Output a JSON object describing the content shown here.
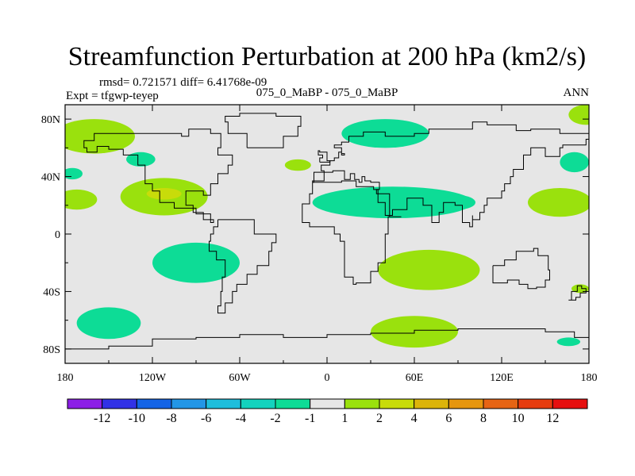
{
  "chart_data": {
    "type": "heatmap",
    "title": "Streamfunction Perturbation at 200 hPa (km2/s)",
    "stats_line": "rmsd= 0.721571 diff= 6.41768e-09",
    "left_label": "Expt = tfgwp-teyep",
    "center_label": "075_0_MaBP - 075_0_MaBP",
    "right_label": "ANN",
    "x_ticks": [
      "180",
      "120W",
      "60W",
      "0",
      "60E",
      "120E",
      "180"
    ],
    "x_values": [
      -180,
      -120,
      -60,
      0,
      60,
      120,
      180
    ],
    "y_ticks": [
      "80N",
      "40N",
      "0",
      "40S",
      "80S"
    ],
    "y_values": [
      80,
      40,
      0,
      -40,
      -80
    ],
    "xlim": [
      -180,
      180
    ],
    "ylim": [
      -90,
      90
    ],
    "background_color": "#e6e6e6",
    "colorbar": {
      "colors": [
        "#8c1fe6",
        "#3232e6",
        "#1464e6",
        "#2396e6",
        "#1ebedc",
        "#14d2be",
        "#0ddc96",
        "#e6e6e6",
        "#9ae10d",
        "#c8dc0a",
        "#dcb40a",
        "#e6960f",
        "#e66414",
        "#e63c0f",
        "#e60f0f"
      ],
      "labels": [
        "-12",
        "-10",
        "-8",
        "-6",
        "-4",
        "-2",
        "-1",
        "1",
        "2",
        "4",
        "6",
        "8",
        "10",
        "12"
      ]
    },
    "anomaly_regions": [
      {
        "lon": -160,
        "lat": 68,
        "rlon": 28,
        "rlat": 12,
        "value": 2
      },
      {
        "lon": -175,
        "lat": 42,
        "rlon": 7,
        "rlat": 4,
        "value": -2
      },
      {
        "lon": -128,
        "lat": 52,
        "rlon": 10,
        "rlat": 5,
        "value": -2
      },
      {
        "lon": -112,
        "lat": 26,
        "rlon": 30,
        "rlat": 13,
        "value": 2
      },
      {
        "lon": -112,
        "lat": 28,
        "rlon": 12,
        "rlat": 4,
        "value": 4
      },
      {
        "lon": -172,
        "lat": 24,
        "rlon": 14,
        "rlat": 7,
        "value": 2
      },
      {
        "lon": -90,
        "lat": -20,
        "rlon": 30,
        "rlat": 14,
        "value": -2
      },
      {
        "lon": -150,
        "lat": -62,
        "rlon": 22,
        "rlat": 11,
        "value": -2
      },
      {
        "lon": 40,
        "lat": 70,
        "rlon": 30,
        "rlat": 10,
        "value": -2
      },
      {
        "lon": 45,
        "lat": 22,
        "rlon": 55,
        "rlat": 11,
        "value": -2
      },
      {
        "lon": -20,
        "lat": 48,
        "rlon": 9,
        "rlat": 4,
        "value": 2
      },
      {
        "lon": 90,
        "lat": 22,
        "rlon": 12,
        "rlat": 5,
        "value": -2
      },
      {
        "lon": 70,
        "lat": -25,
        "rlon": 35,
        "rlat": 14,
        "value": 2
      },
      {
        "lon": 60,
        "lat": -68,
        "rlon": 30,
        "rlat": 11,
        "value": 2
      },
      {
        "lon": 160,
        "lat": 22,
        "rlon": 22,
        "rlat": 10,
        "value": 2
      },
      {
        "lon": 170,
        "lat": 50,
        "rlon": 10,
        "rlat": 7,
        "value": -2
      },
      {
        "lon": 178,
        "lat": 83,
        "rlon": 12,
        "rlat": 7,
        "value": 2
      },
      {
        "lon": 174,
        "lat": -38,
        "rlon": 6,
        "rlat": 3,
        "value": 2
      },
      {
        "lon": 166,
        "lat": -75,
        "rlon": 8,
        "rlat": 3,
        "value": -2
      }
    ],
    "coastlines": [
      [
        [
          -130,
          70
        ],
        [
          -115,
          70
        ],
        [
          -100,
          68
        ],
        [
          -95,
          73
        ],
        [
          -80,
          70
        ],
        [
          -73,
          60
        ],
        [
          -75,
          55
        ],
        [
          -65,
          48
        ],
        [
          -68,
          42
        ],
        [
          -75,
          35
        ],
        [
          -80,
          27
        ],
        [
          -85,
          30
        ],
        [
          -90,
          30
        ],
        [
          -97,
          26
        ],
        [
          -97,
          20
        ],
        [
          -92,
          15
        ],
        [
          -85,
          10
        ],
        [
          -78,
          8
        ],
        [
          -80,
          14
        ],
        [
          -90,
          18
        ],
        [
          -105,
          22
        ],
        [
          -115,
          30
        ],
        [
          -120,
          35
        ],
        [
          -125,
          42
        ],
        [
          -125,
          48
        ],
        [
          -130,
          55
        ],
        [
          -140,
          59
        ],
        [
          -150,
          61
        ],
        [
          -158,
          57
        ],
        [
          -165,
          60
        ],
        [
          -167,
          65
        ],
        [
          -160,
          70
        ],
        [
          -140,
          70
        ],
        [
          -130,
          70
        ]
      ],
      [
        [
          -75,
          10
        ],
        [
          -62,
          10
        ],
        [
          -50,
          0
        ],
        [
          -35,
          -6
        ],
        [
          -38,
          -12
        ],
        [
          -40,
          -22
        ],
        [
          -48,
          -28
        ],
        [
          -55,
          -35
        ],
        [
          -62,
          -40
        ],
        [
          -65,
          -48
        ],
        [
          -70,
          -55
        ],
        [
          -75,
          -50
        ],
        [
          -73,
          -40
        ],
        [
          -72,
          -30
        ],
        [
          -70,
          -18
        ],
        [
          -76,
          -12
        ],
        [
          -81,
          -5
        ],
        [
          -80,
          0
        ],
        [
          -78,
          5
        ],
        [
          -75,
          10
        ]
      ],
      [
        [
          -55,
          60
        ],
        [
          -45,
          60
        ],
        [
          -30,
          68
        ],
        [
          -20,
          75
        ],
        [
          -18,
          82
        ],
        [
          -35,
          84
        ],
        [
          -60,
          82
        ],
        [
          -70,
          78
        ],
        [
          -68,
          70
        ],
        [
          -55,
          60
        ]
      ],
      [
        [
          -10,
          36
        ],
        [
          0,
          36
        ],
        [
          10,
          37
        ],
        [
          20,
          33
        ],
        [
          32,
          31
        ],
        [
          35,
          28
        ],
        [
          43,
          12
        ],
        [
          51,
          12
        ],
        [
          42,
          0
        ],
        [
          40,
          -10
        ],
        [
          40,
          -20
        ],
        [
          35,
          -26
        ],
        [
          30,
          -34
        ],
        [
          20,
          -35
        ],
        [
          18,
          -30
        ],
        [
          12,
          -18
        ],
        [
          12,
          -5
        ],
        [
          9,
          0
        ],
        [
          5,
          5
        ],
        [
          -5,
          5
        ],
        [
          -12,
          8
        ],
        [
          -17,
          15
        ],
        [
          -17,
          21
        ],
        [
          -12,
          28
        ],
        [
          -10,
          36
        ]
      ],
      [
        [
          -10,
          36
        ],
        [
          -9,
          43
        ],
        [
          -2,
          44
        ],
        [
          -4,
          48
        ],
        [
          2,
          51
        ],
        [
          5,
          53
        ],
        [
          8,
          57
        ],
        [
          10,
          55
        ],
        [
          12,
          56
        ],
        [
          10,
          60
        ],
        [
          5,
          62
        ],
        [
          10,
          64
        ],
        [
          15,
          68
        ],
        [
          25,
          71
        ],
        [
          40,
          68
        ],
        [
          45,
          68
        ],
        [
          60,
          70
        ],
        [
          70,
          73
        ],
        [
          80,
          73
        ],
        [
          100,
          78
        ],
        [
          110,
          76
        ],
        [
          130,
          72
        ],
        [
          140,
          73
        ],
        [
          160,
          70
        ],
        [
          170,
          70
        ],
        [
          180,
          66
        ],
        [
          178,
          62
        ],
        [
          162,
          60
        ],
        [
          160,
          54
        ],
        [
          150,
          60
        ],
        [
          140,
          55
        ],
        [
          135,
          45
        ],
        [
          128,
          40
        ],
        [
          126,
          35
        ],
        [
          122,
          30
        ],
        [
          120,
          25
        ],
        [
          110,
          20
        ],
        [
          108,
          15
        ],
        [
          105,
          10
        ],
        [
          100,
          13
        ],
        [
          100,
          5
        ],
        [
          98,
          8
        ],
        [
          93,
          20
        ],
        [
          88,
          22
        ],
        [
          80,
          15
        ],
        [
          77,
          8
        ],
        [
          72,
          20
        ],
        [
          66,
          25
        ],
        [
          57,
          25
        ],
        [
          55,
          17
        ],
        [
          45,
          13
        ],
        [
          40,
          22
        ],
        [
          35,
          28
        ],
        [
          34,
          31
        ],
        [
          36,
          36
        ],
        [
          30,
          37
        ],
        [
          26,
          40
        ],
        [
          24,
          36
        ],
        [
          22,
          38
        ],
        [
          19,
          42
        ],
        [
          16,
          38
        ],
        [
          12,
          44
        ],
        [
          8,
          44
        ],
        [
          4,
          43
        ],
        [
          -2,
          37
        ],
        [
          -10,
          36
        ]
      ],
      [
        [
          114,
          -22
        ],
        [
          122,
          -18
        ],
        [
          130,
          -12
        ],
        [
          137,
          -12
        ],
        [
          142,
          -10
        ],
        [
          145,
          -15
        ],
        [
          152,
          -25
        ],
        [
          153,
          -32
        ],
        [
          150,
          -37
        ],
        [
          144,
          -38
        ],
        [
          138,
          -35
        ],
        [
          132,
          -32
        ],
        [
          124,
          -34
        ],
        [
          116,
          -34
        ],
        [
          114,
          -26
        ],
        [
          114,
          -22
        ]
      ],
      [
        [
          -5,
          50
        ],
        [
          2,
          51
        ],
        [
          0,
          57
        ],
        [
          -5,
          58
        ],
        [
          -6,
          55
        ],
        [
          -3,
          53
        ],
        [
          -5,
          50
        ]
      ],
      [
        [
          166,
          -46
        ],
        [
          171,
          -44
        ],
        [
          174,
          -41
        ],
        [
          178,
          -38
        ],
        [
          175,
          -36
        ],
        [
          172,
          -40
        ],
        [
          168,
          -46
        ],
        [
          166,
          -46
        ]
      ],
      [
        [
          -180,
          -80
        ],
        [
          -150,
          -78
        ],
        [
          -120,
          -73
        ],
        [
          -90,
          -72
        ],
        [
          -60,
          -70
        ],
        [
          -30,
          -72
        ],
        [
          0,
          -70
        ],
        [
          30,
          -69
        ],
        [
          60,
          -67
        ],
        [
          90,
          -66
        ],
        [
          120,
          -66
        ],
        [
          150,
          -68
        ],
        [
          170,
          -72
        ],
        [
          180,
          -78
        ]
      ]
    ]
  }
}
